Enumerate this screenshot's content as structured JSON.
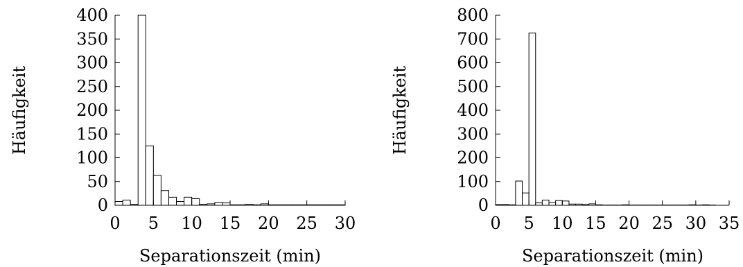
{
  "chart_data": [
    {
      "type": "bar",
      "xlabel": "Separationszeit (min)",
      "ylabel": "Häufigkeit",
      "xlim": [
        0,
        30
      ],
      "ylim": [
        0,
        400
      ],
      "xticks": [
        0,
        5,
        10,
        15,
        20,
        25,
        30
      ],
      "yticks": [
        0,
        50,
        100,
        150,
        200,
        250,
        300,
        350,
        400
      ],
      "bin_width": 1,
      "bins": [
        {
          "x": 0,
          "value": 8
        },
        {
          "x": 1,
          "value": 11
        },
        {
          "x": 2,
          "value": 2
        },
        {
          "x": 3,
          "value": 400
        },
        {
          "x": 4,
          "value": 125
        },
        {
          "x": 5,
          "value": 63
        },
        {
          "x": 6,
          "value": 31
        },
        {
          "x": 7,
          "value": 17
        },
        {
          "x": 8,
          "value": 8
        },
        {
          "x": 9,
          "value": 17
        },
        {
          "x": 10,
          "value": 14
        },
        {
          "x": 11,
          "value": 2
        },
        {
          "x": 12,
          "value": 3
        },
        {
          "x": 13,
          "value": 6
        },
        {
          "x": 14,
          "value": 5
        },
        {
          "x": 15,
          "value": 1
        },
        {
          "x": 16,
          "value": 1
        },
        {
          "x": 17,
          "value": 2
        },
        {
          "x": 18,
          "value": 1
        },
        {
          "x": 19,
          "value": 3
        },
        {
          "x": 20,
          "value": 1
        },
        {
          "x": 21,
          "value": 1
        },
        {
          "x": 22,
          "value": 1
        },
        {
          "x": 23,
          "value": 1
        },
        {
          "x": 24,
          "value": 1
        },
        {
          "x": 25,
          "value": 1
        },
        {
          "x": 26,
          "value": 1
        },
        {
          "x": 27,
          "value": 1
        },
        {
          "x": 28,
          "value": 1
        },
        {
          "x": 29,
          "value": 1
        }
      ]
    },
    {
      "type": "bar",
      "xlabel": "Separationszeit (min)",
      "ylabel": "Häufigkeit",
      "xlim": [
        0,
        35
      ],
      "ylim": [
        0,
        800
      ],
      "xticks": [
        0,
        5,
        10,
        15,
        20,
        25,
        30,
        35
      ],
      "yticks": [
        0,
        100,
        200,
        300,
        400,
        500,
        600,
        700,
        800
      ],
      "bin_width": 1,
      "bins": [
        {
          "x": 0,
          "value": 3
        },
        {
          "x": 1,
          "value": 3
        },
        {
          "x": 2,
          "value": 2
        },
        {
          "x": 3,
          "value": 102
        },
        {
          "x": 4,
          "value": 52
        },
        {
          "x": 5,
          "value": 725
        },
        {
          "x": 6,
          "value": 10
        },
        {
          "x": 7,
          "value": 22
        },
        {
          "x": 8,
          "value": 12
        },
        {
          "x": 9,
          "value": 20
        },
        {
          "x": 10,
          "value": 18
        },
        {
          "x": 11,
          "value": 5
        },
        {
          "x": 12,
          "value": 5
        },
        {
          "x": 13,
          "value": 3
        },
        {
          "x": 14,
          "value": 6
        },
        {
          "x": 15,
          "value": 2
        },
        {
          "x": 16,
          "value": 1
        },
        {
          "x": 17,
          "value": 1
        },
        {
          "x": 18,
          "value": 1
        },
        {
          "x": 19,
          "value": 2
        },
        {
          "x": 20,
          "value": 1
        },
        {
          "x": 21,
          "value": 1
        },
        {
          "x": 22,
          "value": 1
        },
        {
          "x": 23,
          "value": 1
        },
        {
          "x": 24,
          "value": 1
        },
        {
          "x": 25,
          "value": 1
        },
        {
          "x": 26,
          "value": 1
        },
        {
          "x": 27,
          "value": 1
        },
        {
          "x": 28,
          "value": 1
        },
        {
          "x": 29,
          "value": 2
        },
        {
          "x": 30,
          "value": 1
        },
        {
          "x": 31,
          "value": 2
        },
        {
          "x": 32,
          "value": 1
        }
      ]
    }
  ]
}
